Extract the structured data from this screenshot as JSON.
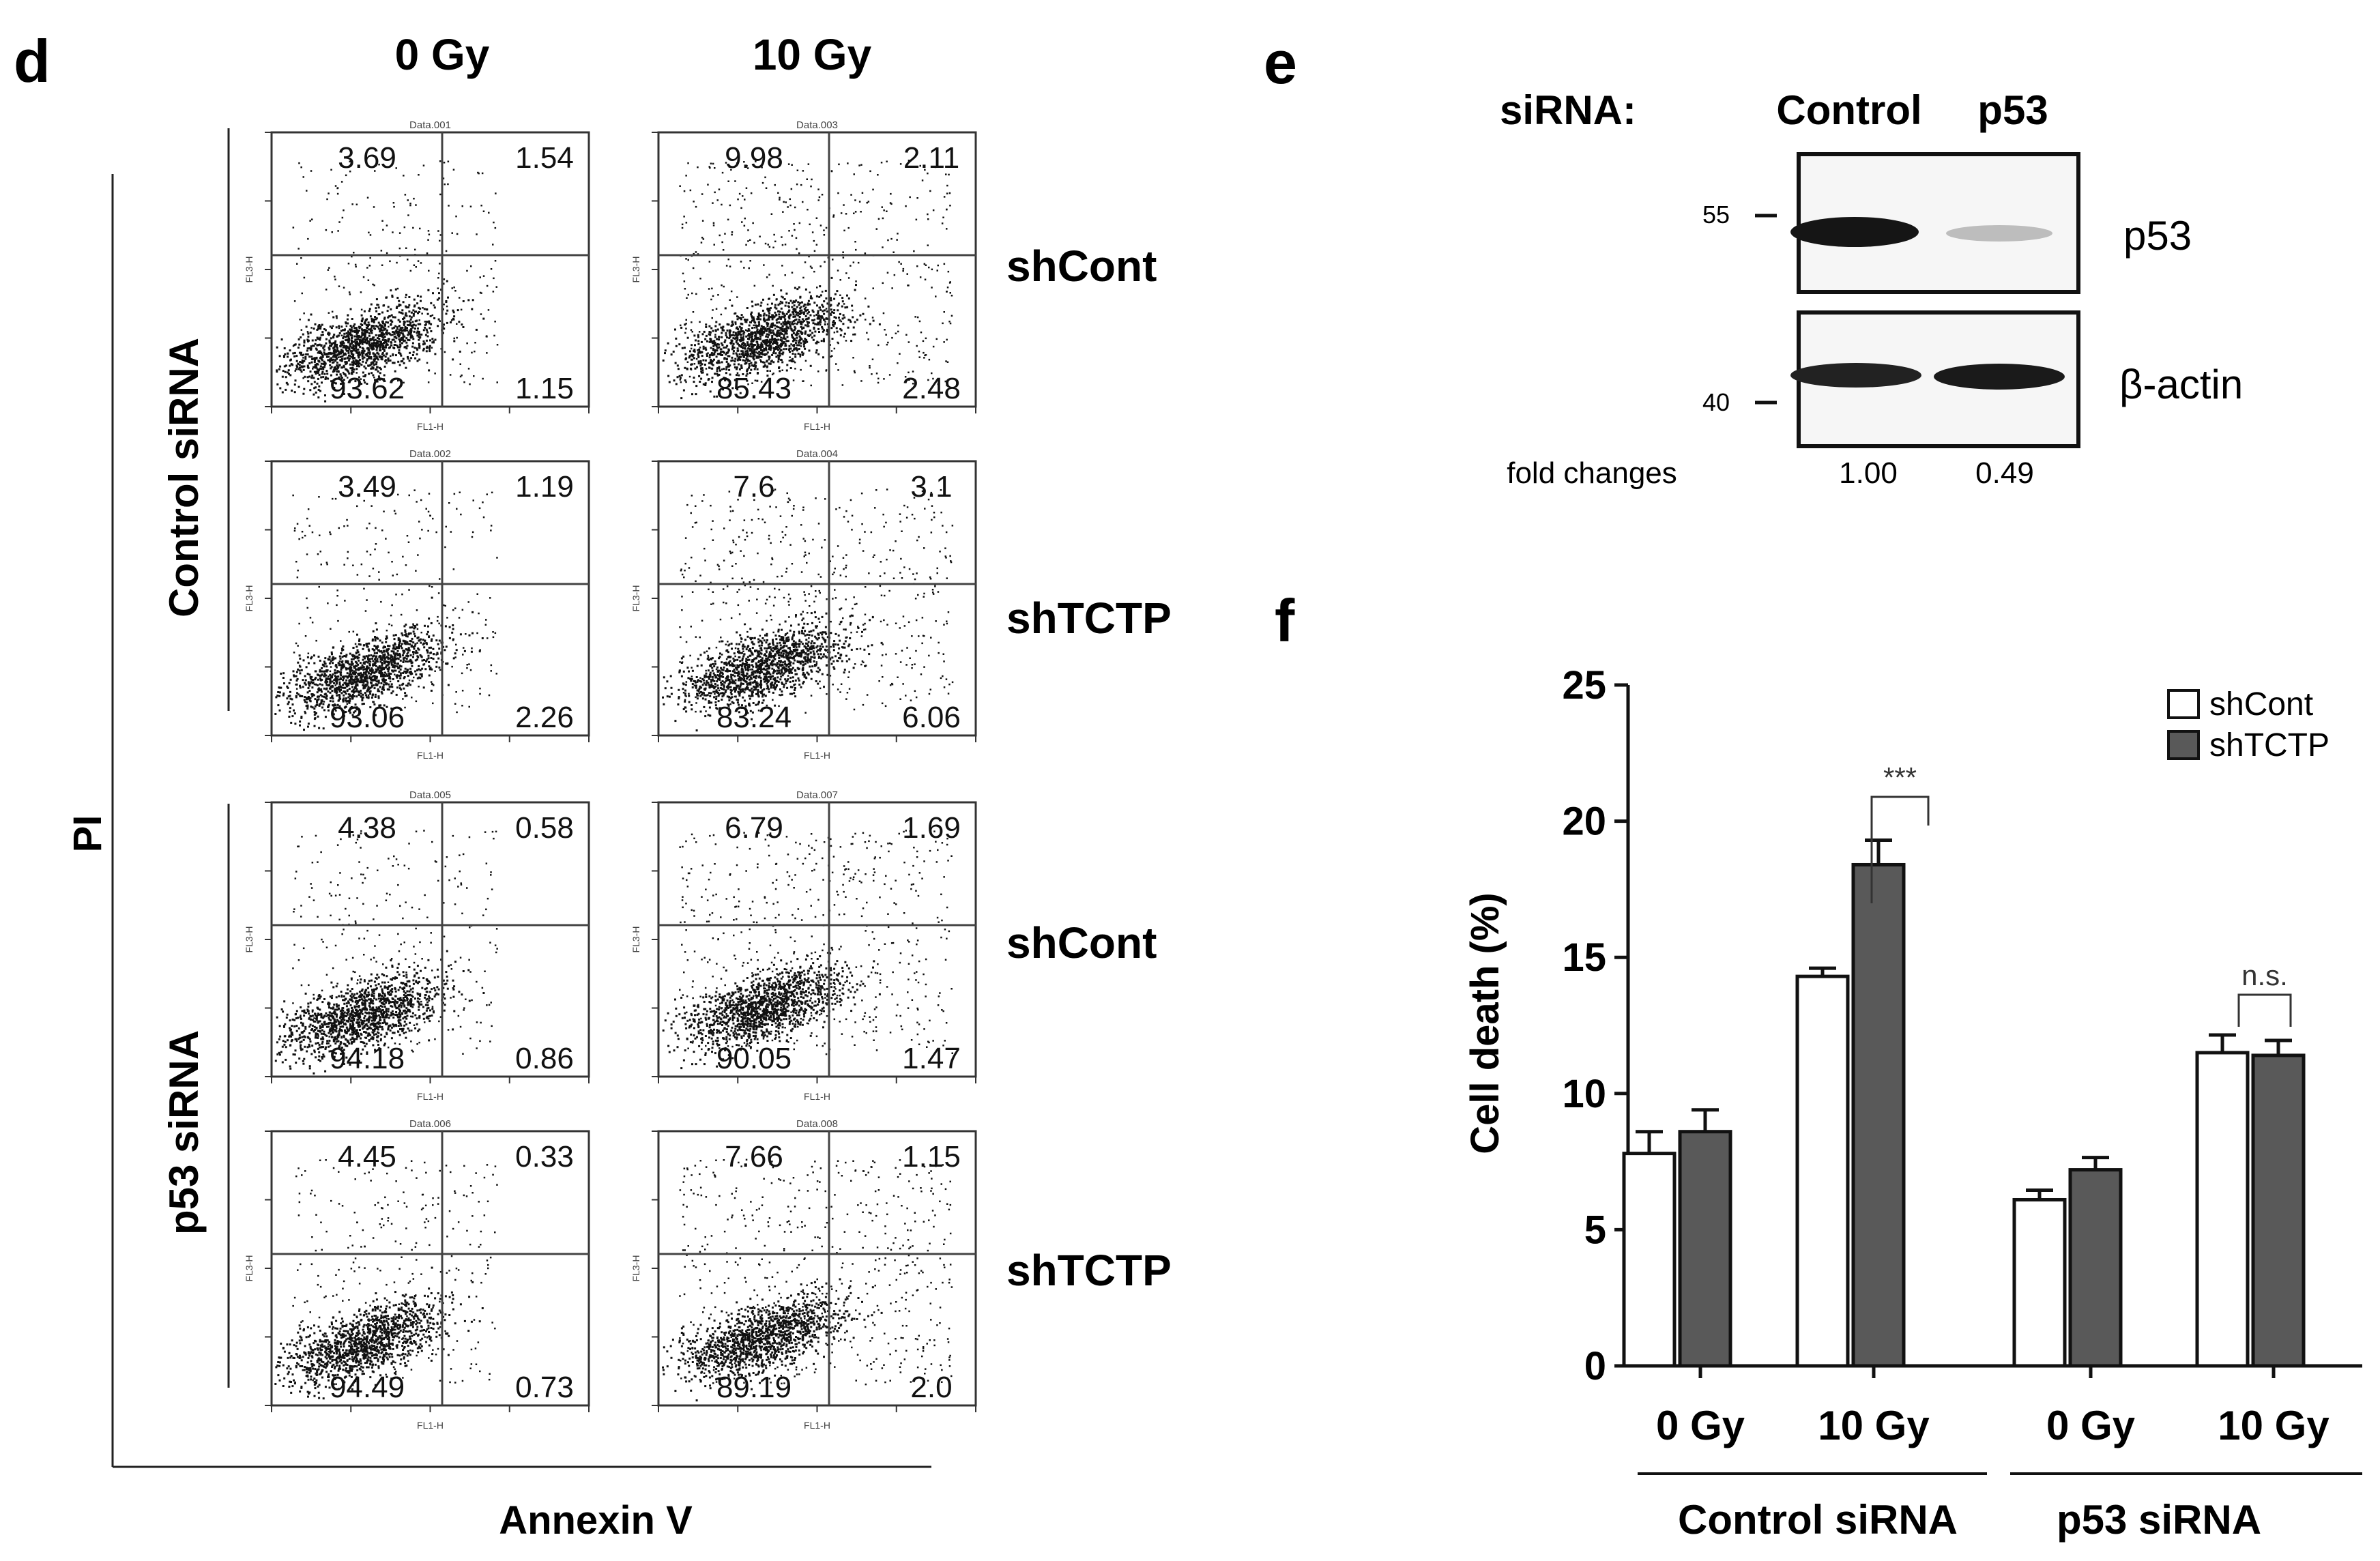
{
  "panels": {
    "d": {
      "label": "d",
      "doses": [
        "0 Gy",
        "10 Gy"
      ],
      "row_groups": [
        "Control siRNA",
        "p53 siRNA"
      ],
      "row_labels": [
        "shCont",
        "shTCTP",
        "shCont",
        "shTCTP"
      ],
      "y_axis_title": "PI",
      "x_axis_title": "Annexin V",
      "plot_titles": [
        "Data.001",
        "Data.003",
        "Data.002",
        "Data.004",
        "Data.005",
        "Data.007",
        "Data.006",
        "Data.008"
      ],
      "plot_axis_labels": {
        "x": "FL1-H",
        "y": "FL3-H"
      },
      "quadrants": [
        [
          "3.69",
          "1.54",
          "93.62",
          "1.15"
        ],
        [
          "9.98",
          "2.11",
          "85.43",
          "2.48"
        ],
        [
          "3.49",
          "1.19",
          "93.06",
          "2.26"
        ],
        [
          "7.6",
          "3.1",
          "83.24",
          "6.06"
        ],
        [
          "4.38",
          "0.58",
          "94.18",
          "0.86"
        ],
        [
          "6.79",
          "1.69",
          "90.05",
          "1.47"
        ],
        [
          "4.45",
          "0.33",
          "94.49",
          "0.73"
        ],
        [
          "7.66",
          "1.15",
          "89.19",
          "2.0"
        ]
      ]
    },
    "e": {
      "label": "e",
      "header_prefix": "siRNA:",
      "lanes": [
        "Control",
        "p53"
      ],
      "markers": [
        "55",
        "40"
      ],
      "bands": [
        "p53",
        "β-actin"
      ],
      "fold_label": "fold changes",
      "fold_values": [
        "1.00",
        "0.49"
      ],
      "p53_band_intensity": [
        1.0,
        0.25
      ]
    },
    "f": {
      "label": "f",
      "chart_data": {
        "type": "bar",
        "title": "",
        "xlabel": "",
        "ylabel": "Cell death (%)",
        "ylim": [
          0,
          25
        ],
        "yticks": [
          0,
          5,
          10,
          15,
          20,
          25
        ],
        "categories": [
          "0 Gy",
          "10 Gy",
          "0 Gy",
          "10 Gy"
        ],
        "groups": [
          "Control siRNA",
          "p53 siRNA"
        ],
        "series": [
          {
            "name": "shCont",
            "color": "#ffffff",
            "values": [
              7.8,
              14.3,
              6.1,
              11.5
            ],
            "errors": [
              0.8,
              0.3,
              0.35,
              0.65
            ]
          },
          {
            "name": "shTCTP",
            "color": "#595959",
            "values": [
              8.6,
              18.4,
              7.2,
              11.4
            ],
            "errors": [
              0.8,
              0.9,
              0.45,
              0.55
            ]
          }
        ],
        "annotations": [
          "***",
          "n.s."
        ]
      }
    }
  }
}
